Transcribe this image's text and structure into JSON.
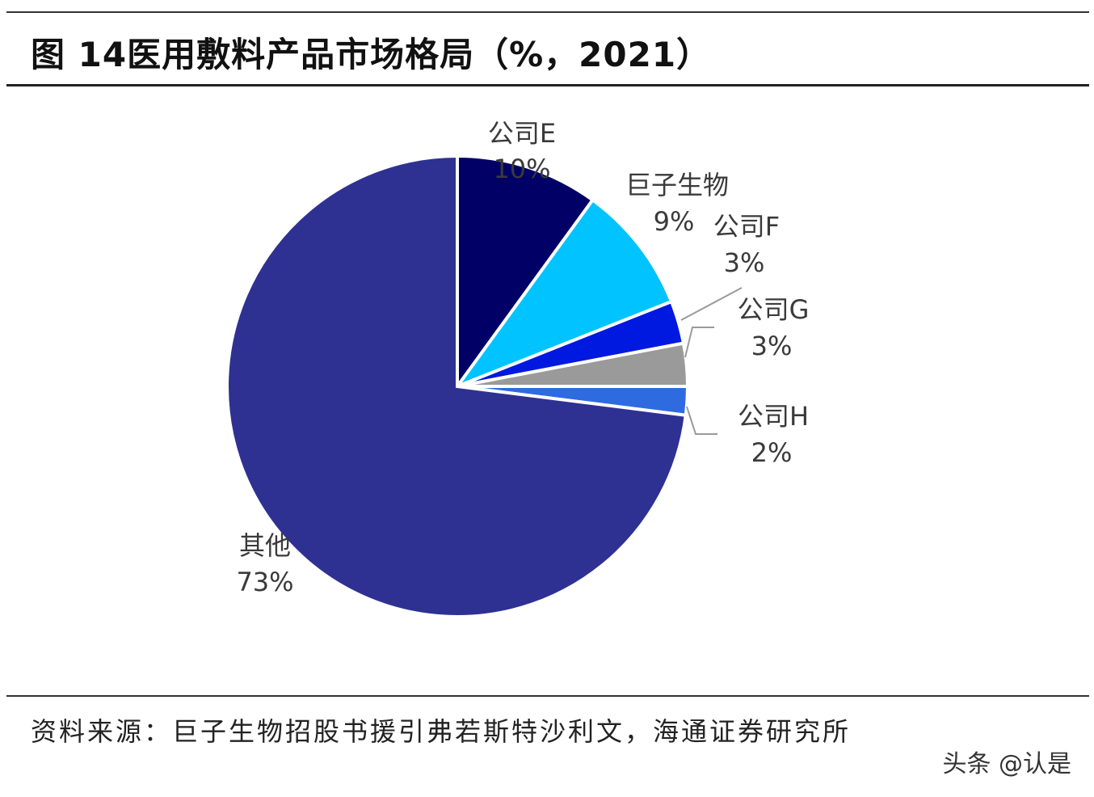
{
  "title": "图 14医用敷料产品市场格局（%，2021）",
  "source": "资料来源：巨子生物招股书援引弗若斯特沙利文，海通证券研究所",
  "watermark": "头条 @认是",
  "chart_data": {
    "type": "pie",
    "title": "",
    "start_angle_deg": 0,
    "direction": "clockwise",
    "slices": [
      {
        "label": "公司E",
        "value": 10,
        "value_label": "10%",
        "color": "#000066"
      },
      {
        "label": "巨子生物",
        "value": 9,
        "value_label": "9%",
        "color": "#00c3ff"
      },
      {
        "label": "公司F",
        "value": 3,
        "value_label": "3%",
        "color": "#0019e0"
      },
      {
        "label": "公司G",
        "value": 3,
        "value_label": "3%",
        "color": "#9a9a9a"
      },
      {
        "label": "公司H",
        "value": 2,
        "value_label": "2%",
        "color": "#2f6be0"
      },
      {
        "label": "其他",
        "value": 73,
        "value_label": "73%",
        "color": "#2e3192"
      }
    ]
  }
}
